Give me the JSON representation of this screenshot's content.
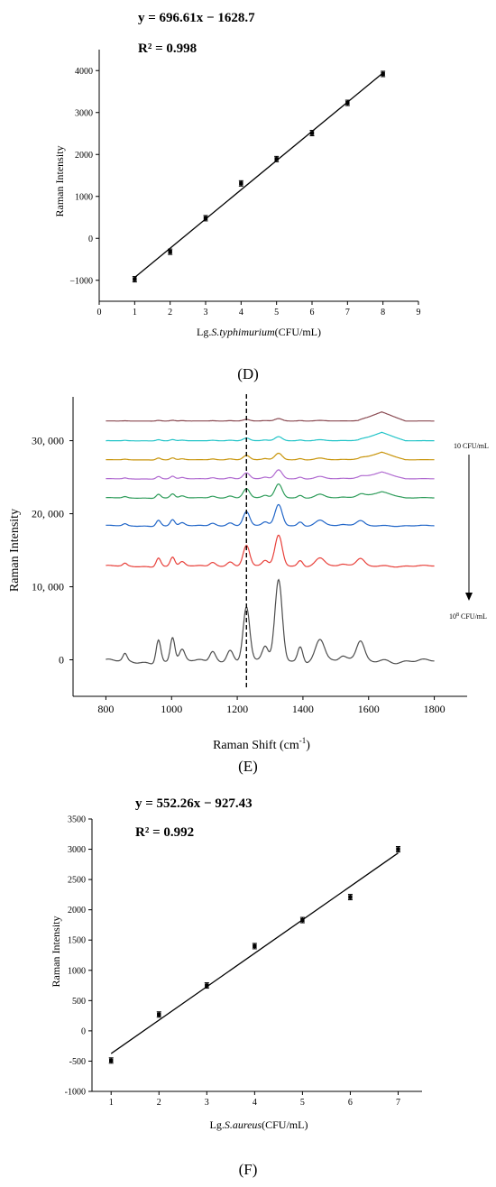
{
  "chart_data": [
    {
      "type": "scatter",
      "panel_label": "(D)",
      "equation": "y = 696.61x − 1628.7",
      "r2": "R² = 0.998",
      "xlabel_prefix": "Lg.",
      "xlabel_species": "S.typhimurium",
      "xlabel_unit": "(CFU/mL)",
      "ylabel": "Raman Intensity",
      "xlim": [
        0,
        9
      ],
      "ylim": [
        -1500,
        4500
      ],
      "xticks": [
        0,
        1,
        2,
        3,
        4,
        5,
        6,
        7,
        8,
        9
      ],
      "yticks": [
        -1000,
        0,
        1000,
        2000,
        3000,
        4000
      ],
      "ytick_labels": [
        "−1000",
        "0",
        "1000",
        "2000",
        "3000",
        "4000"
      ],
      "fit": {
        "slope": 696.61,
        "intercept": -1628.7,
        "x_range": [
          1,
          8
        ]
      },
      "points": [
        {
          "x": 1,
          "y": -975
        },
        {
          "x": 2,
          "y": -320
        },
        {
          "x": 3,
          "y": 480
        },
        {
          "x": 4,
          "y": 1310
        },
        {
          "x": 5,
          "y": 1890
        },
        {
          "x": 6,
          "y": 2510
        },
        {
          "x": 7,
          "y": 3230
        },
        {
          "x": 8,
          "y": 3920
        }
      ]
    },
    {
      "type": "line",
      "panel_label": "(E)",
      "xlabel": "Raman Shift (cm",
      "xlabel_sup": "-1",
      "xlabel_close": ")",
      "ylabel": "Raman Intensity",
      "xlim": [
        700,
        1900
      ],
      "ylim": [
        -5000,
        36000
      ],
      "xticks": [
        800,
        1000,
        1200,
        1400,
        1600,
        1800
      ],
      "yticks": [
        0,
        10000,
        20000,
        30000
      ],
      "ytick_labels": [
        "0",
        "10, 000",
        "20, 000",
        "30, 000"
      ],
      "dashed_line_x": 1228,
      "conc_top": "10 CFU/mL",
      "conc_bottom_base": "10",
      "conc_bottom_sup": "8",
      "conc_bottom_unit": " CFU/mL",
      "series": [
        {
          "offset": 0,
          "scale": 1.0,
          "color": "#4d4d4d"
        },
        {
          "offset": 12900,
          "scale": 0.38,
          "color": "#e8403a"
        },
        {
          "offset": 18400,
          "scale": 0.26,
          "color": "#2166c8"
        },
        {
          "offset": 22200,
          "scale": 0.17,
          "color": "#2e9c5a"
        },
        {
          "offset": 24800,
          "scale": 0.11,
          "color": "#b06ad0"
        },
        {
          "offset": 27400,
          "scale": 0.08,
          "color": "#c8940a"
        },
        {
          "offset": 30000,
          "scale": 0.05,
          "color": "#22c4c8"
        },
        {
          "offset": 32700,
          "scale": 0.03,
          "color": "#8a4a52"
        }
      ]
    },
    {
      "type": "scatter",
      "panel_label": "(F)",
      "equation": "y = 552.26x − 927.43",
      "r2": "R² = 0.992",
      "xlabel_prefix": "Lg.",
      "xlabel_species": "S.aureus",
      "xlabel_unit": "(CFU/mL)",
      "ylabel": "Raman Intensity",
      "xlim": [
        0.6,
        7.5
      ],
      "ylim": [
        -1000,
        3500
      ],
      "xticks": [
        1,
        2,
        3,
        4,
        5,
        6,
        7
      ],
      "yticks": [
        -1000,
        -500,
        0,
        500,
        1000,
        1500,
        2000,
        2500,
        3000,
        3500
      ],
      "ytick_labels": [
        "-1000",
        "-500",
        "0",
        "500",
        "1000",
        "1500",
        "2000",
        "2500",
        "3000",
        "3500"
      ],
      "fit": {
        "slope": 552.26,
        "intercept": -927.43,
        "x_range": [
          1,
          7
        ]
      },
      "points": [
        {
          "x": 1,
          "y": -490
        },
        {
          "x": 2,
          "y": 270
        },
        {
          "x": 3,
          "y": 750
        },
        {
          "x": 4,
          "y": 1400
        },
        {
          "x": 5,
          "y": 1830
        },
        {
          "x": 6,
          "y": 2210
        },
        {
          "x": 7,
          "y": 3000
        }
      ]
    }
  ]
}
